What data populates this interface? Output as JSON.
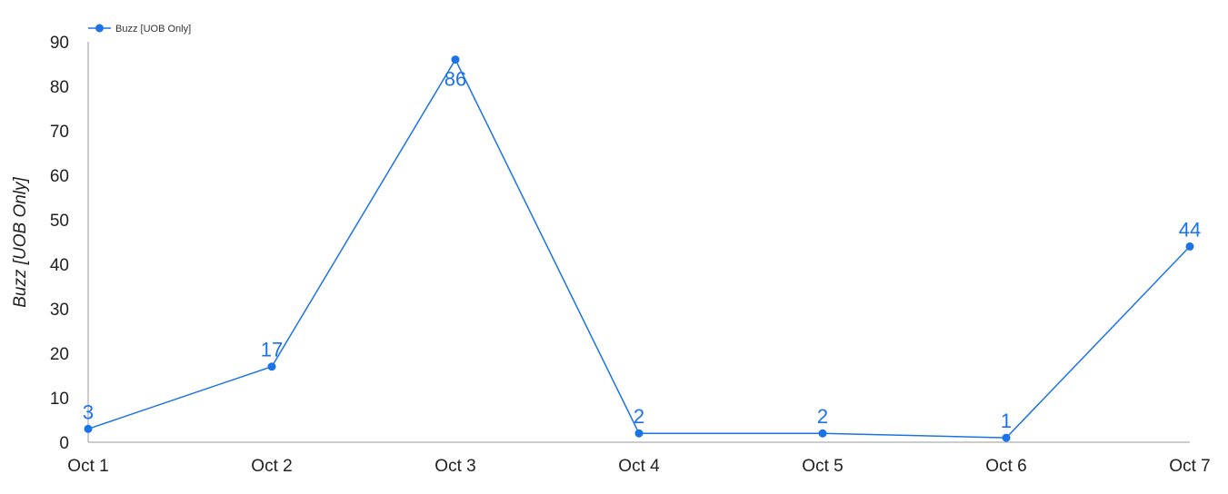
{
  "chart_data": {
    "type": "line",
    "categories": [
      "Oct 1",
      "Oct 2",
      "Oct 3",
      "Oct 4",
      "Oct 5",
      "Oct 6",
      "Oct 7"
    ],
    "series": [
      {
        "name": "Buzz [UOB Only]",
        "values": [
          3,
          17,
          86,
          2,
          2,
          1,
          44
        ],
        "color": "#1a73e8"
      }
    ],
    "ylabel": "Buzz [UOB Only]",
    "xlabel": "",
    "ylim": [
      0,
      90
    ],
    "yticks": [
      0,
      10,
      20,
      30,
      40,
      50,
      60,
      70,
      80,
      90
    ],
    "grid": false,
    "legend": "top-left",
    "data_labels": true,
    "axis_color": "#999999"
  }
}
